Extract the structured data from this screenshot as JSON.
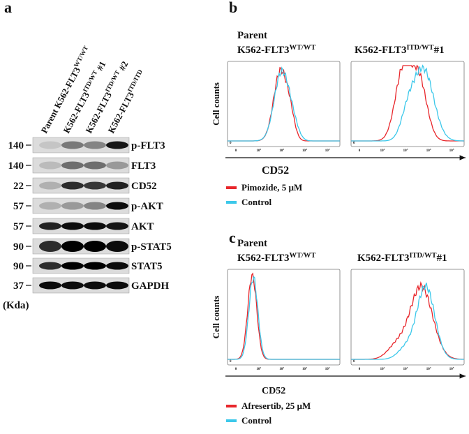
{
  "panel_a": {
    "label": "a",
    "lanes": [
      [
        {
          "t": "Parent K562-FLT3"
        },
        {
          "t": "WT/WT",
          "sup": true
        }
      ],
      [
        {
          "t": "K562-FLT3"
        },
        {
          "t": "ITD/WT",
          "sup": true
        },
        {
          "t": " #1"
        }
      ],
      [
        {
          "t": "K562-FLT3"
        },
        {
          "t": "ITD/WT",
          "sup": true
        },
        {
          "t": " #2"
        }
      ],
      [
        {
          "t": "K562-FLT3"
        },
        {
          "t": "ITD/ITD",
          "sup": true
        }
      ]
    ],
    "rows": [
      {
        "kda": "140",
        "protein": "p-FLT3"
      },
      {
        "kda": "140",
        "protein": "FLT3"
      },
      {
        "kda": "22",
        "protein": "CD52"
      },
      {
        "kda": "57",
        "protein": "p-AKT"
      },
      {
        "kda": "57",
        "protein": "AKT"
      },
      {
        "kda": "90",
        "protein": "p-STAT5"
      },
      {
        "kda": "90",
        "protein": "STAT5"
      },
      {
        "kda": "37",
        "protein": "GAPDH"
      }
    ],
    "unit": "(Kda)"
  },
  "panel_b": {
    "label": "b",
    "plots": [
      [
        {
          "t": "Parent"
        },
        [
          {
            "t": "K562-FLT3"
          },
          {
            "t": "WT/WT",
            "sup": true
          }
        ]
      ],
      [
        [
          {
            "t": "K562-FLT3"
          },
          {
            "t": "ITD/WT",
            "sup": true
          },
          {
            "t": "#1"
          }
        ]
      ]
    ],
    "y_label": "Cell counts",
    "x_label": "CD52",
    "x_ticks": [
      [
        {
          "t": "0"
        }
      ],
      [
        {
          "t": "10"
        },
        {
          "t": "2",
          "sup": true
        }
      ],
      [
        {
          "t": "10"
        },
        {
          "t": "3",
          "sup": true
        }
      ],
      [
        {
          "t": "10"
        },
        {
          "t": "4",
          "sup": true
        }
      ],
      [
        {
          "t": "10"
        },
        {
          "t": "5",
          "sup": true
        }
      ]
    ],
    "y_tick": "0",
    "legend": [
      {
        "name": "Pimozide, 5 µM",
        "color": "#e8262b"
      },
      {
        "name": "Control",
        "color": "#3cc8ea"
      }
    ]
  },
  "panel_c": {
    "label": "c",
    "plots": [
      [
        {
          "t": "Parent"
        },
        [
          {
            "t": "K562-FLT3"
          },
          {
            "t": "WT/WT",
            "sup": true
          }
        ]
      ],
      [
        [
          {
            "t": "K562-FLT3"
          },
          {
            "t": "ITD/WT",
            "sup": true
          },
          {
            "t": "#1"
          }
        ]
      ]
    ],
    "y_label": "Cell counts",
    "x_label": "CD52",
    "x_ticks": [
      [
        {
          "t": "0"
        }
      ],
      [
        {
          "t": "10"
        },
        {
          "t": "2",
          "sup": true
        }
      ],
      [
        {
          "t": "10"
        },
        {
          "t": "3",
          "sup": true
        }
      ],
      [
        {
          "t": "10"
        },
        {
          "t": "4",
          "sup": true
        }
      ],
      [
        {
          "t": "10"
        },
        {
          "t": "5",
          "sup": true
        }
      ]
    ],
    "y_tick": "0",
    "legend": [
      {
        "name": "Afresertib, 25 µM",
        "color": "#e8262b"
      },
      {
        "name": "Control",
        "color": "#3cc8ea"
      }
    ]
  }
}
